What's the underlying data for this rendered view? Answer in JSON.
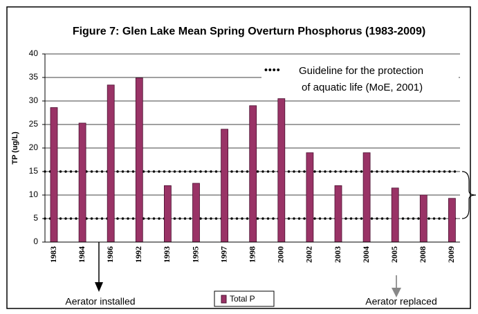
{
  "chart_data": {
    "type": "bar",
    "title": "Figure 7: Glen Lake Mean Spring Overturn Phosphorus (1983-2009)",
    "y_label": "TP (ug/L)",
    "categories": [
      "1983",
      "1984",
      "1986",
      "1992",
      "1993",
      "1995",
      "1997",
      "1998",
      "2000",
      "2002",
      "2003",
      "2004",
      "2005",
      "2008",
      "2009"
    ],
    "series": [
      {
        "name": "Total P",
        "color": "#993366",
        "values": [
          28.6,
          25.3,
          33.4,
          34.9,
          12,
          12.5,
          24,
          29,
          30.5,
          19,
          12,
          19,
          11.5,
          10,
          9.3
        ]
      }
    ],
    "ylim": [
      0,
      40
    ],
    "yticks": [
      0,
      5,
      10,
      15,
      20,
      25,
      30,
      35,
      40
    ],
    "grid": true,
    "guidelines": [
      5,
      15
    ],
    "guideline_label": [
      "Guideline for the protection",
      "of aquatic life (MoE, 2001)"
    ],
    "annotations": [
      "Aerator installed",
      "Aerator replaced"
    ],
    "legend": "bottom"
  }
}
